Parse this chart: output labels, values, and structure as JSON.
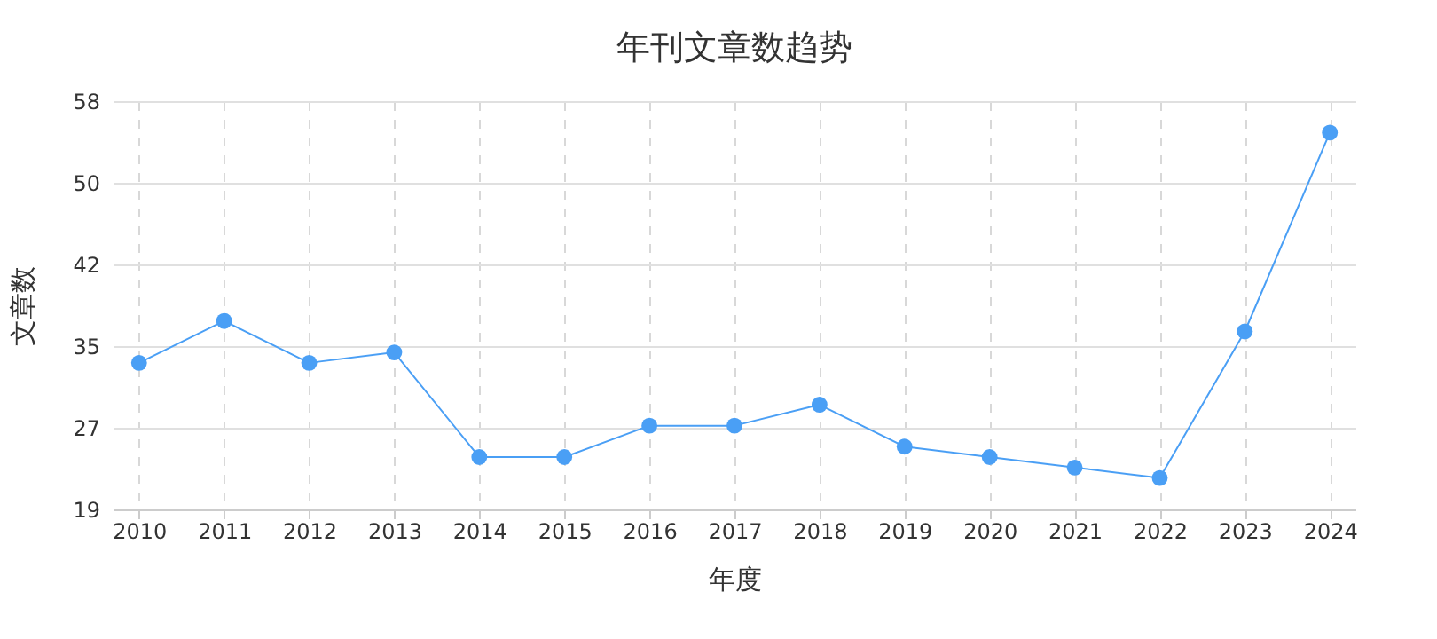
{
  "chart_data": {
    "type": "line",
    "title": "年刊文章数趋势",
    "xlabel": "年度",
    "ylabel": "文章数",
    "categories": [
      "2010",
      "2011",
      "2012",
      "2013",
      "2014",
      "2015",
      "2016",
      "2017",
      "2018",
      "2019",
      "2020",
      "2021",
      "2022",
      "2023",
      "2024"
    ],
    "series": [
      {
        "color": "#4a9ff5",
        "values": [
          33,
          37,
          33,
          34,
          24,
          24,
          27,
          27,
          29,
          25,
          24,
          23,
          22,
          36,
          55
        ]
      }
    ],
    "ylim": [
      19,
      58
    ],
    "yticks": [
      19,
      {
        "value": 26.8,
        "label": "27"
      },
      {
        "value": 34.6,
        "label": "35"
      },
      {
        "value": 42.4,
        "label": "42"
      },
      {
        "value": 50.2,
        "label": "50"
      },
      58
    ],
    "grid": true,
    "marker": "circle",
    "line_style": "solid",
    "legend": false
  }
}
